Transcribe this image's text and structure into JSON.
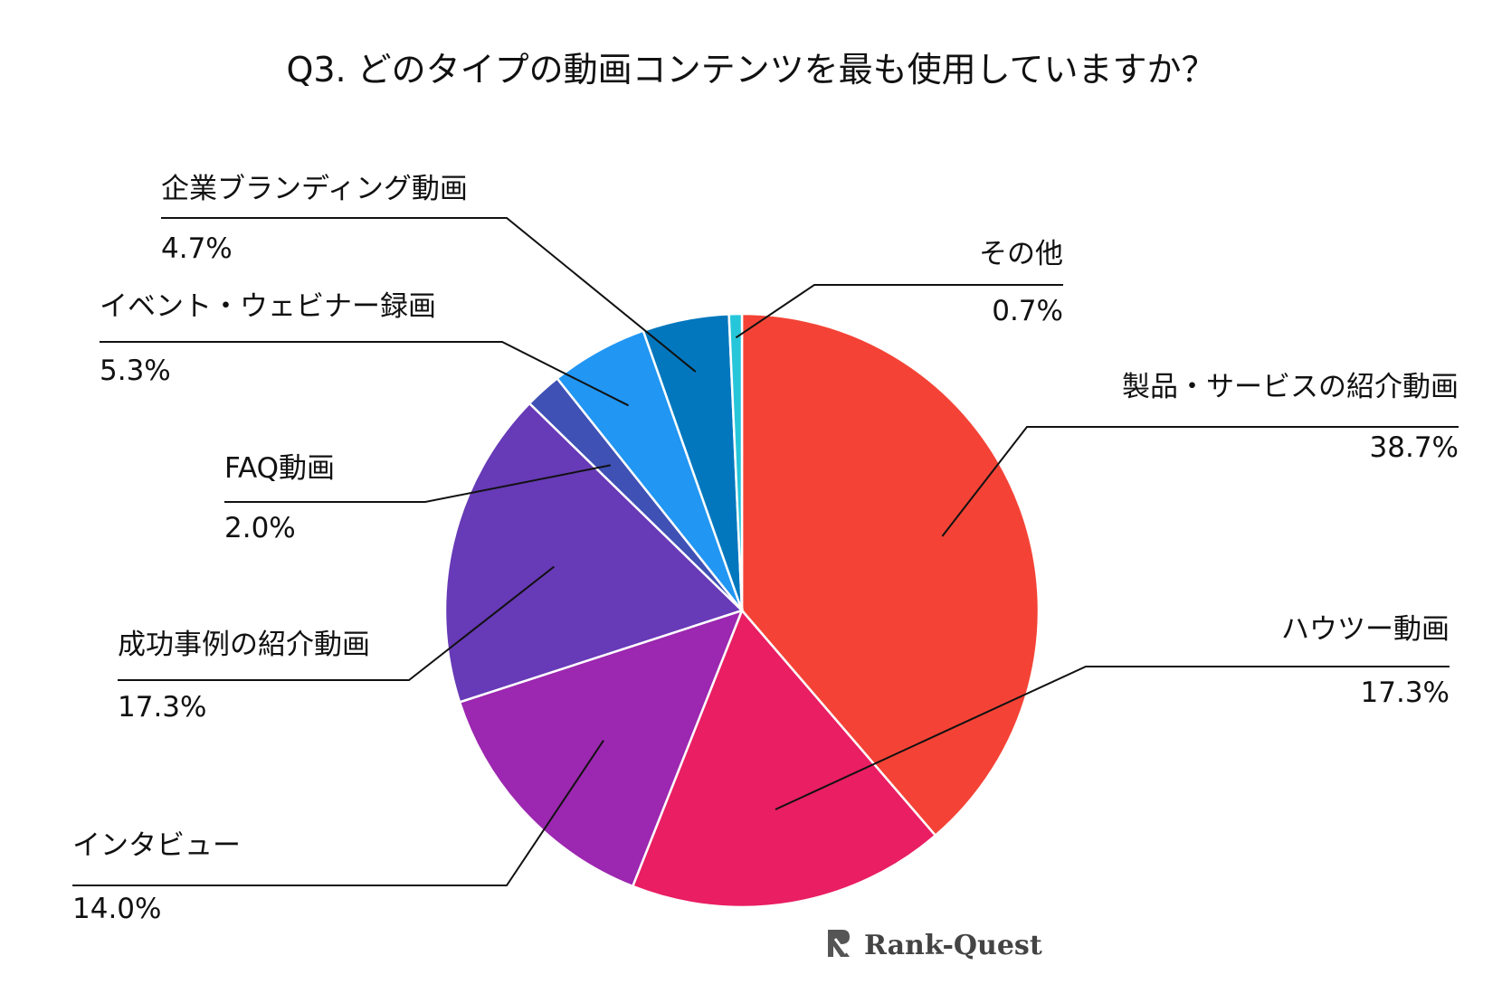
{
  "chart_data": {
    "type": "pie",
    "title": "Q3. どのタイプの動画コンテンツを最も使用していますか？",
    "start": "top",
    "direction": "clockwise",
    "slices": [
      {
        "label": "製品・サービスの紹介動画",
        "value": 38.7,
        "value_label": "38.7%",
        "color": "#f44336"
      },
      {
        "label": "ハウツー動画",
        "value": 17.3,
        "value_label": "17.3%",
        "color": "#e91e63"
      },
      {
        "label": "インタビュー",
        "value": 14.0,
        "value_label": "14.0%",
        "color": "#9c27b0"
      },
      {
        "label": "成功事例の紹介動画",
        "value": 17.3,
        "value_label": "17.3%",
        "color": "#673ab7"
      },
      {
        "label": "FAQ動画",
        "value": 2.0,
        "value_label": "2.0%",
        "color": "#3f51b5"
      },
      {
        "label": "イベント・ウェビナー録画",
        "value": 5.3,
        "value_label": "5.3%",
        "color": "#2196f3"
      },
      {
        "label": "企業ブランディング動画",
        "value": 4.7,
        "value_label": "4.7%",
        "color": "#0277bd"
      },
      {
        "label": "その他",
        "value": 0.7,
        "value_label": "0.7%",
        "color": "#26c6da"
      }
    ]
  },
  "branding": {
    "logo_text": "Rank-Quest",
    "logo_icon": "rank-quest-logo-icon"
  }
}
